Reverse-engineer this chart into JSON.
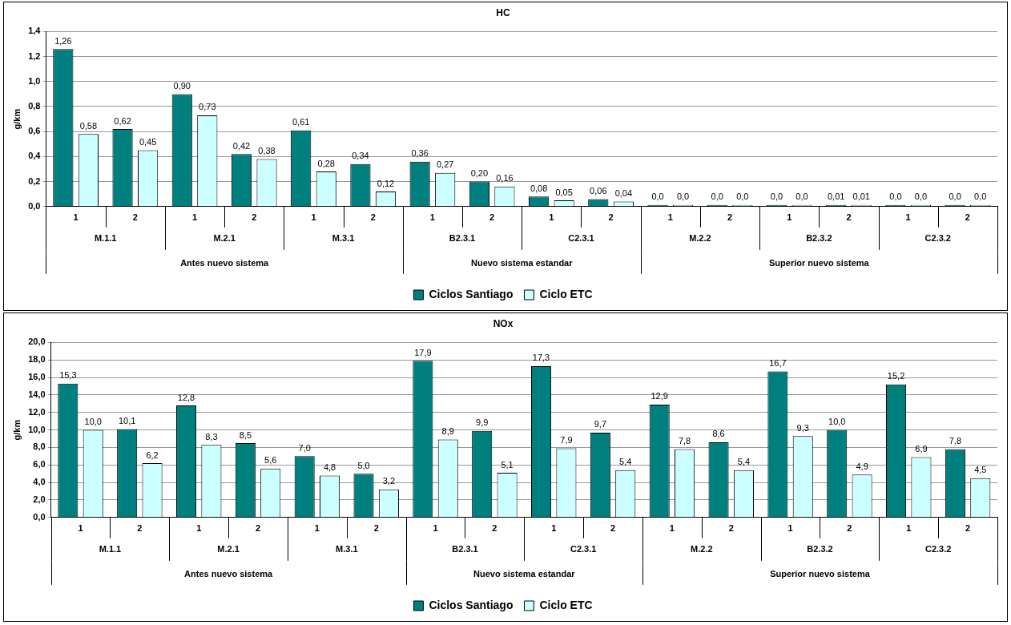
{
  "chart_data": [
    {
      "type": "bar",
      "title": "HC",
      "ylabel": "g/km",
      "categories": [
        "1",
        "2",
        "1",
        "2",
        "1",
        "2",
        "1",
        "2",
        "1",
        "2",
        "1",
        "2",
        "1",
        "2",
        "1",
        "2"
      ],
      "series": [
        {
          "name": "Ciclos Santiago",
          "color": "#007f7f",
          "values": [
            1.26,
            0.62,
            0.9,
            0.42,
            0.61,
            0.34,
            0.36,
            0.2,
            0.08,
            0.06,
            0.0,
            0.0,
            0.0,
            0.01,
            0.0,
            0.0
          ],
          "value_labels": [
            "1,26",
            "0,62",
            "0,90",
            "0,42",
            "0,61",
            "0,34",
            "0,36",
            "0,20",
            "0,08",
            "0,06",
            "0,0",
            "0,0",
            "0,0",
            "0,01",
            "0,0",
            "0,0"
          ]
        },
        {
          "name": "Ciclo ETC",
          "color": "#ccffff",
          "values": [
            0.58,
            0.45,
            0.73,
            0.38,
            0.28,
            0.12,
            0.27,
            0.16,
            0.05,
            0.04,
            0.0,
            0.0,
            0.0,
            0.01,
            0.0,
            0.0
          ],
          "value_labels": [
            "0,58",
            "0,45",
            "0,73",
            "0,38",
            "0,28",
            "0,12",
            "0,27",
            "0,16",
            "0,05",
            "0,04",
            "0,0",
            "0,0",
            "0,0",
            "0,01",
            "0,0",
            "0,0"
          ]
        }
      ],
      "ylim": [
        0,
        1.4
      ],
      "yticks": [
        {
          "value": 0,
          "label": "0,0"
        },
        {
          "value": 0.2,
          "label": "0,2"
        },
        {
          "value": 0.4,
          "label": "0,4"
        },
        {
          "value": 0.6,
          "label": "0,6"
        },
        {
          "value": 0.8,
          "label": "0,8"
        },
        {
          "value": 1.0,
          "label": "1,0"
        },
        {
          "value": 1.2,
          "label": "1,2"
        },
        {
          "value": 1.4,
          "label": "1,4"
        }
      ],
      "grid": "y",
      "legend": "bottom",
      "annotations": [
        "M.1.1",
        "M.2.1",
        "M.3.1",
        "B2.3.1",
        "C2.3.1",
        "M.2.2",
        "B2.3.2",
        "C2.3.2",
        "Antes nuevo sistema",
        "Nuevo sistema estandar",
        "Superior nuevo sistema"
      ]
    },
    {
      "type": "bar",
      "title": "NOx",
      "ylabel": "g/km",
      "categories": [
        "1",
        "2",
        "1",
        "2",
        "1",
        "2",
        "1",
        "2",
        "1",
        "2",
        "1",
        "2",
        "1",
        "2",
        "1",
        "2"
      ],
      "series": [
        {
          "name": "Ciclos Santiago",
          "color": "#007f7f",
          "values": [
            15.3,
            10.1,
            12.8,
            8.5,
            7.0,
            5.0,
            17.9,
            9.9,
            17.3,
            9.7,
            12.9,
            8.6,
            16.7,
            10.0,
            15.2,
            7.8
          ],
          "value_labels": [
            "15,3",
            "10,1",
            "12,8",
            "8,5",
            "7,0",
            "5,0",
            "17,9",
            "9,9",
            "17,3",
            "9,7",
            "12,9",
            "8,6",
            "16,7",
            "10,0",
            "15,2",
            "7,8"
          ]
        },
        {
          "name": "Ciclo ETC",
          "color": "#ccffff",
          "values": [
            10.0,
            6.2,
            8.3,
            5.6,
            4.8,
            3.2,
            8.9,
            5.1,
            7.9,
            5.4,
            7.8,
            5.4,
            9.3,
            4.9,
            6.9,
            4.5
          ],
          "value_labels": [
            "10,0",
            "6,2",
            "8,3",
            "5,6",
            "4,8",
            "3,2",
            "8,9",
            "5,1",
            "7,9",
            "5,4",
            "7,8",
            "5,4",
            "9,3",
            "4,9",
            "6,9",
            "4,5"
          ]
        }
      ],
      "ylim": [
        0,
        20
      ],
      "yticks": [
        {
          "value": 0,
          "label": "0,0"
        },
        {
          "value": 2,
          "label": "2,0"
        },
        {
          "value": 4,
          "label": "4,0"
        },
        {
          "value": 6,
          "label": "6,0"
        },
        {
          "value": 8,
          "label": "8,0"
        },
        {
          "value": 10,
          "label": "10,0"
        },
        {
          "value": 12,
          "label": "12,0"
        },
        {
          "value": 14,
          "label": "14,0"
        },
        {
          "value": 16,
          "label": "16,0"
        },
        {
          "value": 18,
          "label": "18,0"
        },
        {
          "value": 20,
          "label": "20,0"
        }
      ],
      "grid": "y",
      "legend": "bottom",
      "annotations": [
        "M.1.1",
        "M.2.1",
        "M.3.1",
        "B2.3.1",
        "C2.3.1",
        "M.2.2",
        "B2.3.2",
        "C2.3.2",
        "Antes nuevo sistema",
        "Nuevo sistema estandar",
        "Superior nuevo sistema"
      ]
    }
  ]
}
